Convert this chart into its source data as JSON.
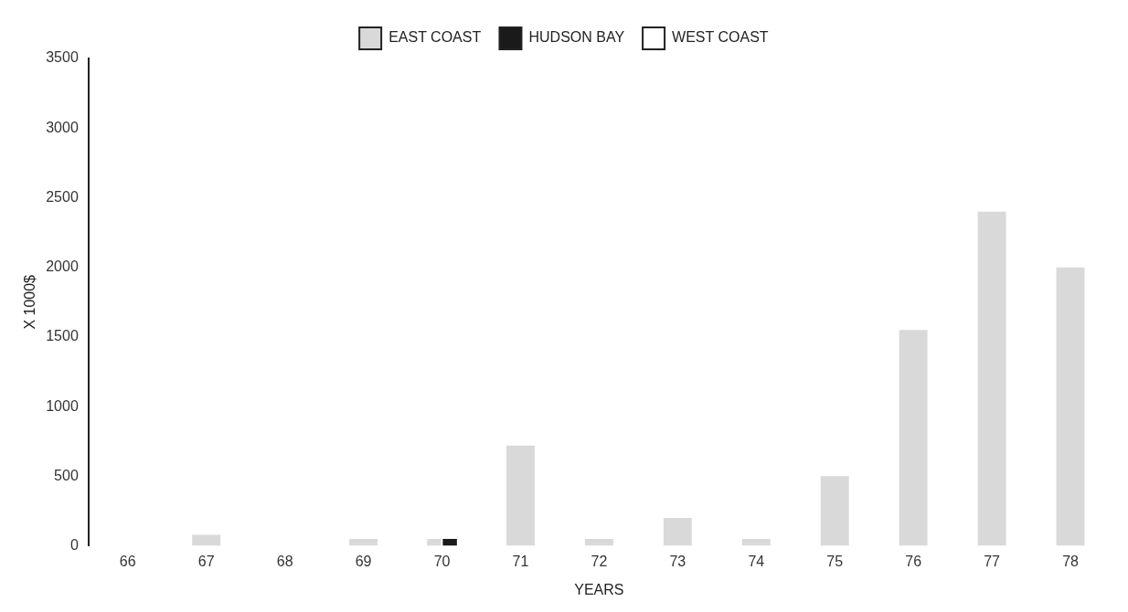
{
  "chart_data": {
    "type": "bar",
    "xlabel": "YEARS",
    "ylabel": "X 1000$",
    "categories": [
      "66",
      "67",
      "68",
      "69",
      "70",
      "71",
      "72",
      "73",
      "74",
      "75",
      "76",
      "77",
      "78"
    ],
    "series": [
      {
        "name": "EAST COAST",
        "color": "#d9d9d9",
        "values": [
          null,
          80,
          null,
          50,
          50,
          720,
          50,
          200,
          50,
          500,
          1550,
          2400,
          2000
        ]
      },
      {
        "name": "HUDSON BAY",
        "color": "#1a1a1a",
        "values": [
          null,
          null,
          null,
          null,
          50,
          null,
          null,
          null,
          null,
          null,
          null,
          null,
          null
        ]
      },
      {
        "name": "WEST COAST",
        "color": "#ffffff",
        "values": [
          null,
          null,
          null,
          null,
          null,
          null,
          null,
          null,
          null,
          null,
          null,
          null,
          null
        ]
      }
    ],
    "ylim": [
      0,
      3500
    ],
    "yticks": [
      0,
      500,
      1000,
      1500,
      2000,
      2500,
      3000,
      3500
    ],
    "grid": false,
    "legend": "top"
  }
}
